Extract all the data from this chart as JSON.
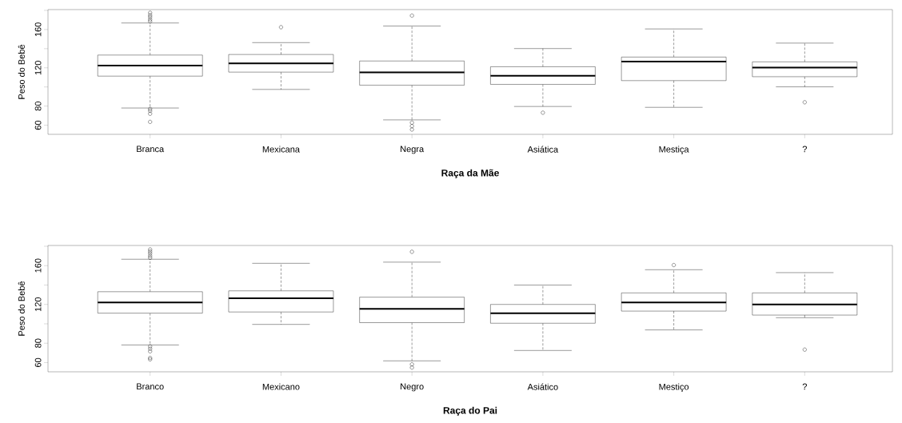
{
  "chart_data": [
    {
      "type": "box",
      "xlabel": "Raça da Mãe",
      "ylabel": "Peso do Bebê",
      "categories": [
        "Branca",
        "Mexicana",
        "Negra",
        "Asiática",
        "Mestiça",
        "?"
      ],
      "ylim": [
        50.5,
        180.8
      ],
      "yticks": [
        60,
        80,
        {
          "value": 100,
          "label": null
        },
        120,
        {
          "value": 140,
          "label": null
        },
        160,
        {
          "value": 180,
          "label": null
        }
      ],
      "boxes": [
        {
          "low": 78,
          "q1": 111.3,
          "median": 122.3,
          "q3": 133.3,
          "high": 166.8,
          "outliers": [
            168.5,
            170.5,
            173,
            175,
            177.5,
            77,
            75,
            72,
            63.5
          ]
        },
        {
          "low": 97.4,
          "q1": 115.5,
          "median": 124.7,
          "q3": 133.9,
          "high": 146.3,
          "outliers": [
            162.4
          ]
        },
        {
          "low": 65.6,
          "q1": 101.8,
          "median": 115.2,
          "q3": 127.1,
          "high": 163.6,
          "outliers": [
            174.5,
            62.7,
            59.1,
            55.5
          ]
        },
        {
          "low": 79.6,
          "q1": 102.7,
          "median": 111.6,
          "q3": 121.1,
          "high": 140.1,
          "outliers": [
            73.1
          ]
        },
        {
          "low": 78.7,
          "q1": 106.6,
          "median": 126.5,
          "q3": 131.2,
          "high": 160.6
        },
        {
          "low": 100.1,
          "q1": 110.7,
          "median": 120.2,
          "q3": 126.2,
          "high": 145.8,
          "outliers": [
            84
          ]
        }
      ]
    },
    {
      "type": "box",
      "xlabel": "Raça do Pai",
      "ylabel": "Peso do Bebê",
      "categories": [
        "Branco",
        "Mexicano",
        "Negro",
        "Asiático",
        "Mestiço",
        "?"
      ],
      "ylim": [
        50.5,
        180.8
      ],
      "yticks": [
        60,
        80,
        {
          "value": 100,
          "label": null
        },
        120,
        {
          "value": 140,
          "label": null
        },
        160,
        {
          "value": 180,
          "label": null
        }
      ],
      "boxes": [
        {
          "low": 78.2,
          "q1": 111,
          "median": 122.1,
          "q3": 133.1,
          "high": 166.6,
          "outliers": [
            168.1,
            170.1,
            172.5,
            174.6,
            176.7,
            76.7,
            74.3,
            71.6,
            64.8,
            63.3
          ]
        },
        {
          "low": 99.4,
          "q1": 112.2,
          "median": 126.3,
          "q3": 134,
          "high": 162.4
        },
        {
          "low": 61.8,
          "q1": 101.2,
          "median": 115.5,
          "q3": 127.5,
          "high": 163.6,
          "outliers": [
            174.3,
            58.2,
            54.9
          ]
        },
        {
          "low": 72.5,
          "q1": 100.6,
          "median": 111,
          "q3": 120,
          "high": 140
        },
        {
          "low": 93.7,
          "q1": 113.1,
          "median": 122.1,
          "q3": 131.9,
          "high": 155.8,
          "outliers": [
            160.6
          ]
        },
        {
          "low": 106.3,
          "q1": 109,
          "median": 120,
          "q3": 131.9,
          "high": 152.8,
          "outliers": [
            73.4
          ]
        }
      ]
    }
  ]
}
